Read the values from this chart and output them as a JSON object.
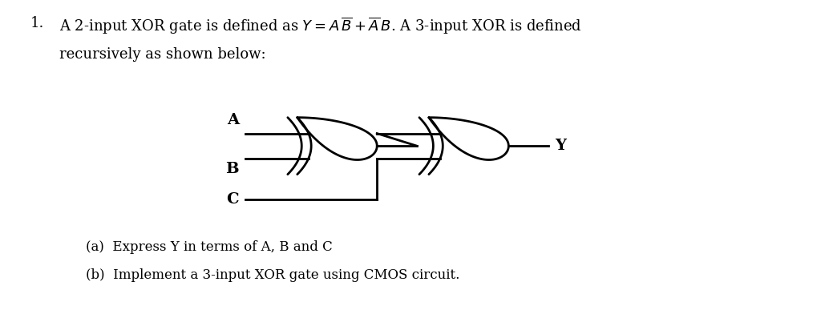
{
  "bg_color": "#ffffff",
  "text_color": "#000000",
  "lw": 2.0,
  "line1": "1.    A 2-input XOR gate is defined as $Y = A\\,\\overline{B}+\\overline{A}\\,B$. A 3-input XOR is defined",
  "line2": "recursively as shown below:",
  "sub_a": "(a)  Express Y in terms of A, B and C",
  "sub_b": "(b)  Implement a 3-input XOR gate using CMOS circuit.",
  "fs_text": 13,
  "fs_label": 14,
  "fs_sub": 12
}
